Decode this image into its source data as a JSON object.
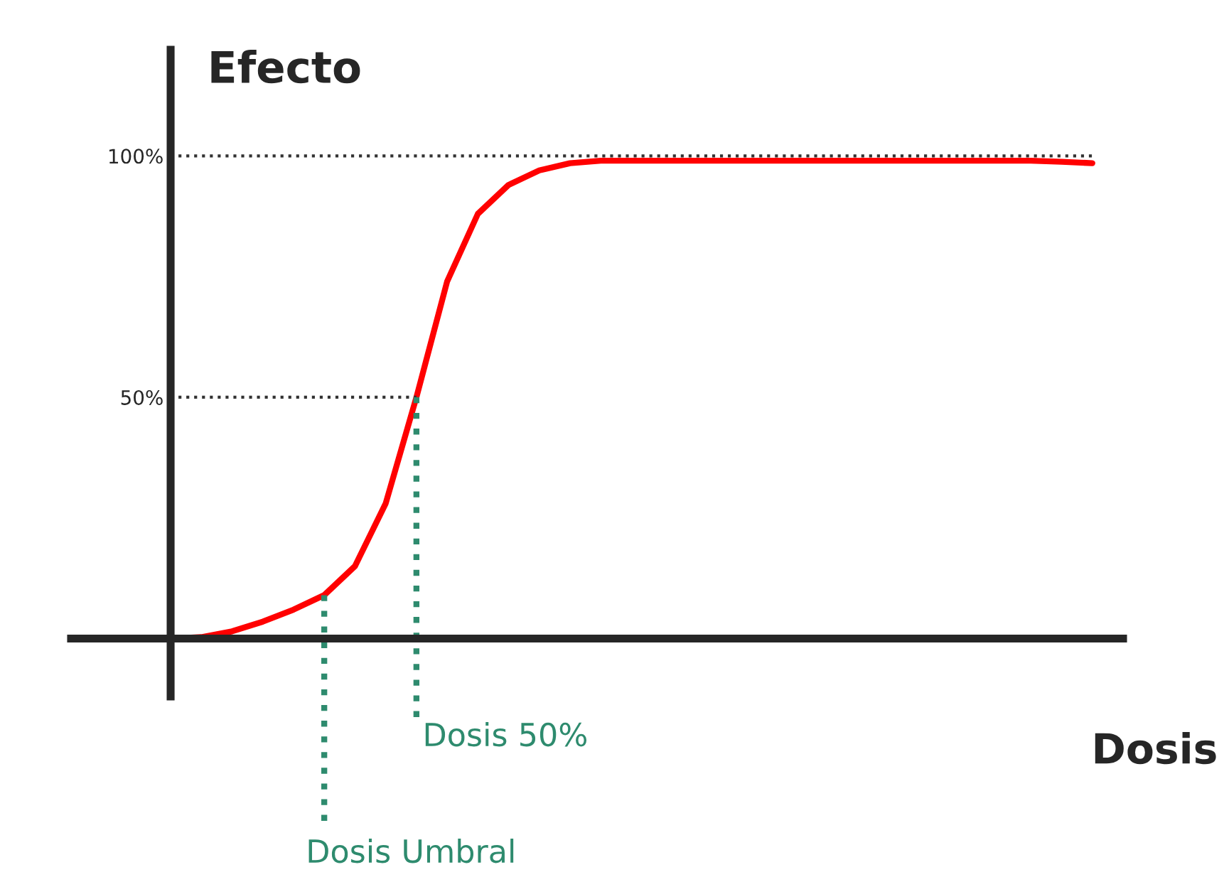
{
  "chart_data": {
    "type": "line",
    "xlabel": "Dosis",
    "ylabel": "Efecto",
    "categories": [
      null,
      null,
      null,
      null,
      null,
      null,
      null,
      null,
      null,
      null,
      null,
      null,
      null,
      null,
      null,
      null,
      null,
      null,
      null,
      null,
      null,
      null,
      null,
      null,
      null,
      null,
      null,
      null,
      null,
      null,
      null
    ],
    "series": [
      {
        "color": "#ff0000",
        "values": [
          0,
          0.3,
          1.5,
          3.5,
          6,
          9,
          15,
          28,
          50,
          74,
          88,
          94,
          97,
          98.5,
          99,
          99,
          99,
          99,
          99,
          99,
          99,
          99,
          99,
          99,
          99,
          99,
          99,
          99,
          99,
          98.8,
          98.5
        ]
      }
    ],
    "ylim": [
      -12,
      122
    ],
    "yticks": [
      {
        "value": 0,
        "label": null
      },
      {
        "value": 50,
        "label": "50%"
      },
      {
        "value": 100,
        "label": "100%"
      }
    ],
    "ref_lines": [
      {
        "axis": "y",
        "value": 50,
        "color": "#333333",
        "line_style": "dotted"
      },
      {
        "axis": "y",
        "value": 100,
        "color": "#333333",
        "line_style": "dotted"
      }
    ],
    "annotations": [
      "Dosis Umbral",
      "Dosis 50%"
    ],
    "grid": false,
    "legend": false,
    "marker": "none",
    "line_style": "solid"
  }
}
